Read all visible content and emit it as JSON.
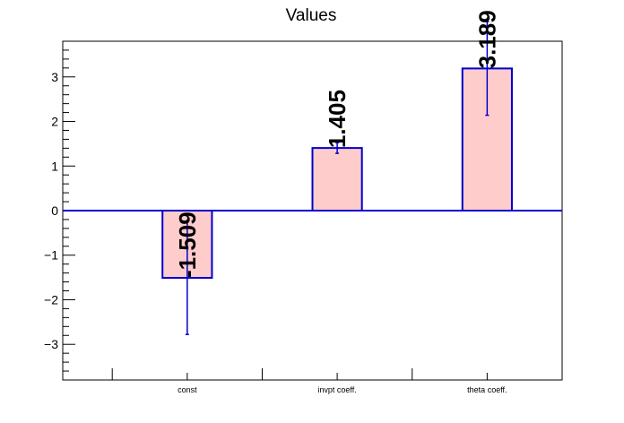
{
  "chart_data": {
    "type": "bar",
    "title": "Values",
    "categories": [
      "const",
      "invpt coeff.",
      "theta coeff."
    ],
    "values": [
      -1.509,
      1.405,
      3.189
    ],
    "errors": [
      1.27,
      0.12,
      1.05
    ],
    "data_labels": [
      "-1.509",
      "1.405",
      "3.189"
    ],
    "ylim": [
      -3.8,
      3.8
    ],
    "y_ticks": [
      -3,
      -2,
      -1,
      0,
      1,
      2,
      3
    ],
    "y_tick_labels": [
      "−3",
      "−2",
      "−1",
      "0",
      "1",
      "2",
      "3"
    ],
    "xlabel": "",
    "ylabel": "",
    "grid": false,
    "colors": {
      "bar_fill": "#ffcccc",
      "bar_edge": "#0000cc",
      "error_bar": "#0000cc",
      "zero_line": "#0000cc",
      "axis": "#000000"
    }
  }
}
